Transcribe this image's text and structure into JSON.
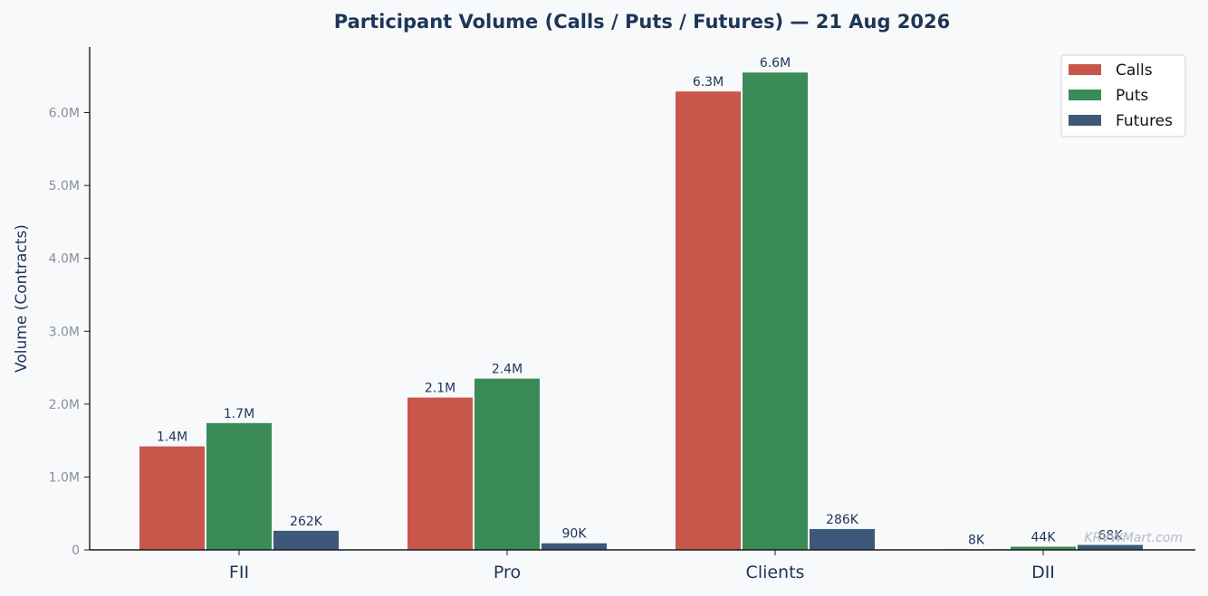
{
  "colors": {
    "background": "#f7f9fb",
    "calls": "#c8564b",
    "puts": "#3a8b57",
    "futures": "#3d5878",
    "title": "#1d3557",
    "axis": "#1a1a1a"
  },
  "watermark": "KRVWMart.com",
  "chart_data": {
    "type": "bar",
    "title": "Participant Volume (Calls / Puts / Futures) — 21 Aug 2026",
    "xlabel": "",
    "ylabel": "Volume (Contracts)",
    "categories": [
      "FII",
      "Pro",
      "Clients",
      "DII"
    ],
    "series": [
      {
        "name": "Calls",
        "color": "#c8564b",
        "values": [
          1420000,
          2090000,
          6290000,
          8000
        ],
        "labels": [
          "1.4M",
          "2.1M",
          "6.3M",
          "8K"
        ]
      },
      {
        "name": "Puts",
        "color": "#3a8b57",
        "values": [
          1740000,
          2350000,
          6550000,
          44000
        ],
        "labels": [
          "1.7M",
          "2.4M",
          "6.6M",
          "44K"
        ]
      },
      {
        "name": "Futures",
        "color": "#3d5878",
        "values": [
          262000,
          90000,
          286000,
          68000
        ],
        "labels": [
          "262K",
          "90K",
          "286K",
          "68K"
        ]
      }
    ],
    "ylim": [
      0,
      6900000
    ],
    "yticks": [
      {
        "value": 0,
        "label": "0"
      },
      {
        "value": 1000000,
        "label": "1.0M"
      },
      {
        "value": 2000000,
        "label": "2.0M"
      },
      {
        "value": 3000000,
        "label": "3.0M"
      },
      {
        "value": 4000000,
        "label": "4.0M"
      },
      {
        "value": 5000000,
        "label": "5.0M"
      },
      {
        "value": 6000000,
        "label": "6.0M"
      }
    ],
    "grid": false,
    "legend_position": "top-right"
  }
}
